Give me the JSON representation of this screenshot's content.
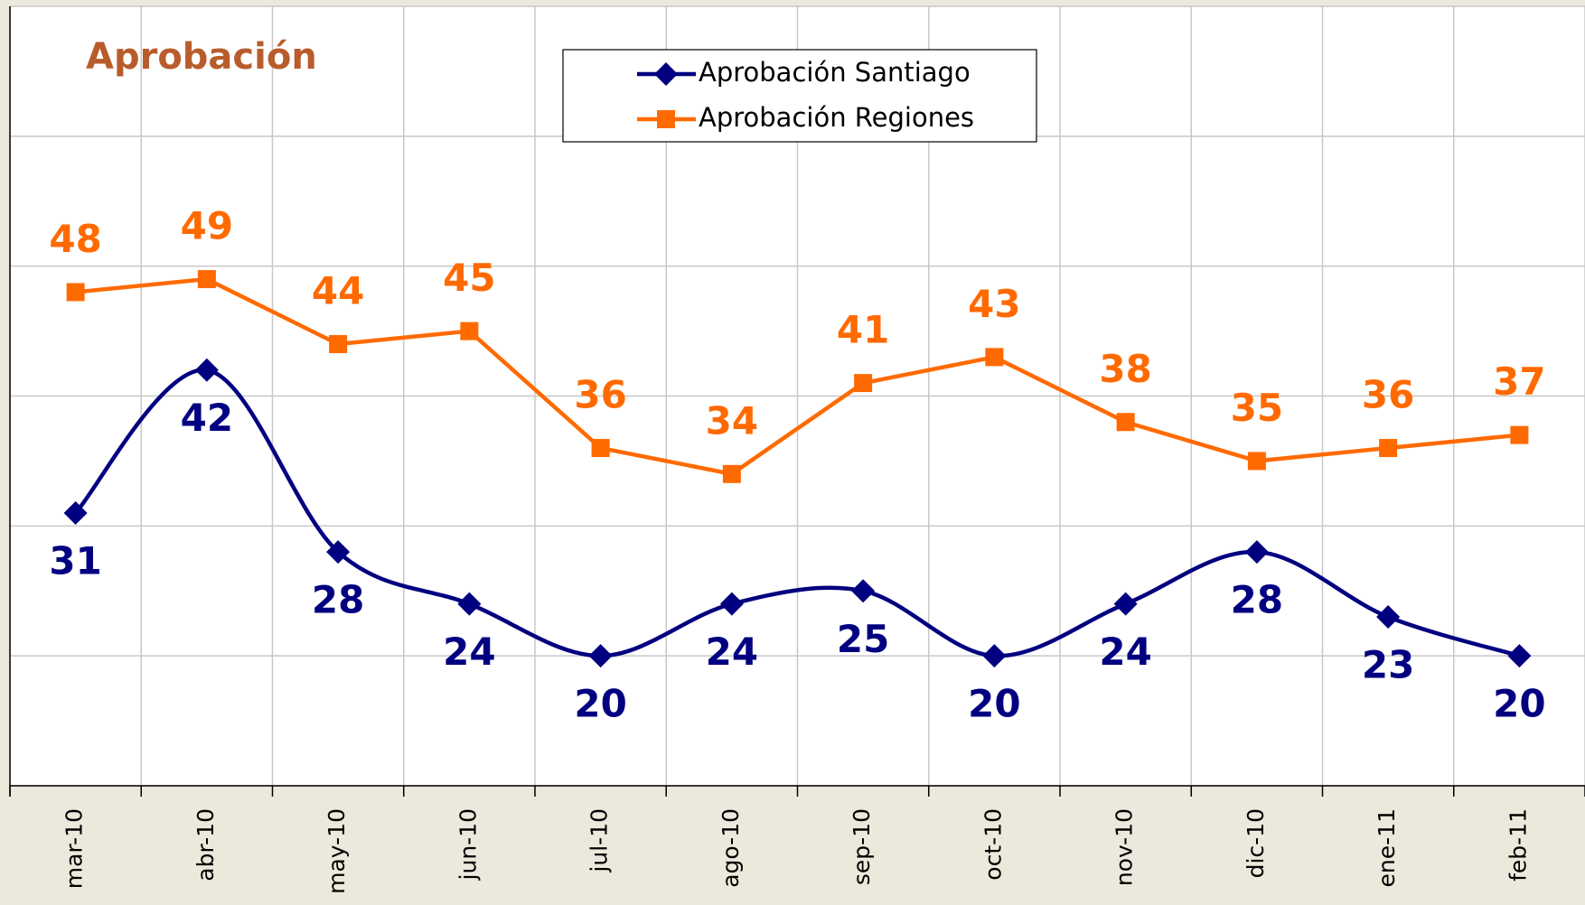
{
  "chart_data": {
    "type": "line",
    "title": "Aprobación",
    "categories": [
      "mar-10",
      "abr-10",
      "may-10",
      "jun-10",
      "jul-10",
      "ago-10",
      "sep-10",
      "oct-10",
      "nov-10",
      "dic-10",
      "ene-11",
      "feb-11"
    ],
    "series": [
      {
        "name": "Aprobación Santiago",
        "color": "#000080",
        "marker": "diamond",
        "smooth": true,
        "values": [
          31,
          42,
          28,
          24,
          20,
          24,
          25,
          20,
          24,
          28,
          23,
          20
        ]
      },
      {
        "name": "Aprobación Regiones",
        "color": "#ff6a00",
        "marker": "square",
        "smooth": false,
        "values": [
          48,
          49,
          44,
          45,
          36,
          34,
          41,
          43,
          38,
          35,
          36,
          37
        ]
      }
    ],
    "ylim": [
      10,
      70
    ],
    "yticks": [
      10,
      20,
      30,
      40,
      50,
      60,
      70
    ],
    "grid": true
  }
}
